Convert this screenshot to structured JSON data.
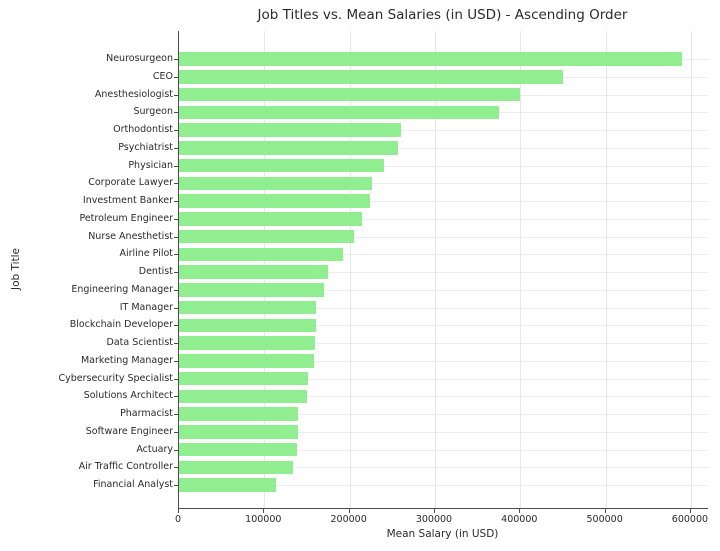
{
  "chart_data": {
    "type": "bar",
    "orientation": "horizontal",
    "title": "Job Titles vs. Mean Salaries (in USD) - Ascending Order",
    "xlabel": "Mean Salary (in USD)",
    "ylabel": "Job Title",
    "sort_order": "ascending from bottom to top",
    "categories": [
      "Neurosurgeon",
      "CEO",
      "Anesthesiologist",
      "Surgeon",
      "Orthodontist",
      "Psychiatrist",
      "Physician",
      "Corporate Lawyer",
      "Investment Banker",
      "Petroleum Engineer",
      "Nurse Anesthetist",
      "Airline Pilot",
      "Dentist",
      "Engineering Manager",
      "IT Manager",
      "Blockchain Developer",
      "Data Scientist",
      "Marketing Manager",
      "Cybersecurity Specialist",
      "Solutions Architect",
      "Pharmacist",
      "Software Engineer",
      "Actuary",
      "Air Traffic Controller",
      "Financial Analyst"
    ],
    "values": [
      590000,
      450000,
      400000,
      375000,
      260000,
      257000,
      240000,
      226000,
      224000,
      214000,
      205000,
      192000,
      175000,
      170000,
      161000,
      160000,
      159000,
      158000,
      151000,
      150000,
      140000,
      139000,
      138000,
      134000,
      114000
    ],
    "xlim": [
      0,
      620000
    ],
    "xticks": [
      0,
      100000,
      200000,
      300000,
      400000,
      500000,
      600000
    ],
    "xtick_labels": [
      "0",
      "100000",
      "200000",
      "300000",
      "400000",
      "500000",
      "600000"
    ],
    "grid": true,
    "legend": false,
    "bar_color": "#90EE90",
    "grid_color": "#e7e7e7",
    "spine_color": "#4d4d4d",
    "text_color": "#2b2b2b",
    "background_color": "#ffffff"
  }
}
